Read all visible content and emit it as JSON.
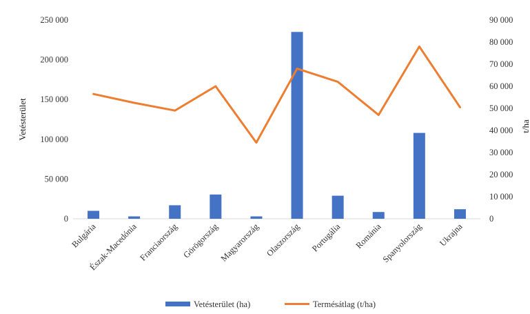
{
  "chart_data": {
    "type": "bar+line",
    "categories": [
      "Bulgária",
      "Észak-Macedónia",
      "Franciaország",
      "Görögország",
      "Magyarország",
      "Olaszország",
      "Portugália",
      "Románia",
      "Spanyolország",
      "Ukrajna"
    ],
    "series": [
      {
        "name": "Vetésterület (ha)",
        "type": "bar",
        "axis": "left",
        "values": [
          10000,
          3000,
          17000,
          30500,
          3000,
          235000,
          29000,
          8500,
          108000,
          12000
        ]
      },
      {
        "name": "Termésátlag (t/ha)",
        "type": "line",
        "axis": "right",
        "values": [
          56500,
          52500,
          49000,
          60000,
          34500,
          68000,
          62000,
          47000,
          78000,
          50500
        ]
      }
    ],
    "ylabel": "Vetésterület",
    "y2label": "t/ha",
    "ylim": [
      0,
      250000
    ],
    "y2lim": [
      0,
      90000
    ],
    "yticks": [
      "0",
      "50 000",
      "100 000",
      "150 000",
      "200 000",
      "250 000"
    ],
    "y2ticks": [
      "0",
      "10 000",
      "20 000",
      "30 000",
      "40 000",
      "50 000",
      "60 000",
      "70 000",
      "80 000",
      "90 000"
    ],
    "grid": false,
    "legend": "bottom",
    "colors": {
      "bar": "#4472C4",
      "line": "#ED7D31",
      "axis": "#d9d9d9"
    }
  }
}
